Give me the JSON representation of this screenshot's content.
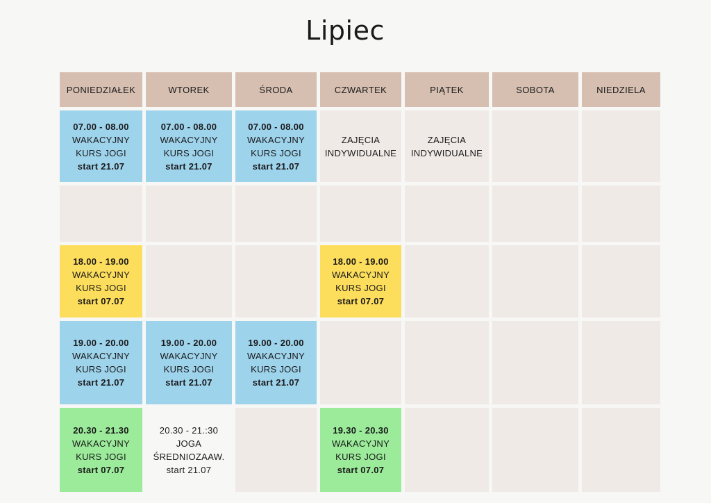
{
  "title": "Lipiec",
  "days": [
    "PONIEDZIAŁEK",
    "WTOREK",
    "ŚRODA",
    "CZWARTEK",
    "PIĄTEK",
    "SOBOTA",
    "NIEDZIELA"
  ],
  "rows": [
    [
      {
        "color": "blue",
        "time": "07.00 - 08.00",
        "line1": "WAKACYJNY",
        "line2": "KURS JOGI",
        "start": "start 21.07"
      },
      {
        "color": "blue",
        "time": "07.00 - 08.00",
        "line1": "WAKACYJNY",
        "line2": "KURS JOGI",
        "start": "start 21.07"
      },
      {
        "color": "blue",
        "time": "07.00 - 08.00",
        "line1": "WAKACYJNY",
        "line2": "KURS JOGI",
        "start": "start 21.07"
      },
      {
        "color": "empty",
        "plain": true,
        "line1": "ZAJĘCIA",
        "line2": "INDYWIDUALNE"
      },
      {
        "color": "empty",
        "plain": true,
        "line1": "ZAJĘCIA",
        "line2": "INDYWIDUALNE"
      },
      {
        "color": "empty"
      },
      {
        "color": "empty"
      }
    ],
    [
      {
        "color": "empty"
      },
      {
        "color": "empty"
      },
      {
        "color": "empty"
      },
      {
        "color": "empty"
      },
      {
        "color": "empty"
      },
      {
        "color": "empty"
      },
      {
        "color": "empty"
      }
    ],
    [
      {
        "color": "yellow",
        "time": "18.00 - 19.00",
        "line1": "WAKACYJNY",
        "line2": "KURS JOGI",
        "start": "start 07.07"
      },
      {
        "color": "empty"
      },
      {
        "color": "empty"
      },
      {
        "color": "yellow",
        "time": "18.00 - 19.00",
        "line1": "WAKACYJNY",
        "line2": "KURS JOGI",
        "start": "start 07.07"
      },
      {
        "color": "empty"
      },
      {
        "color": "empty"
      },
      {
        "color": "empty"
      }
    ],
    [
      {
        "color": "blue",
        "time": "19.00 - 20.00",
        "line1": "WAKACYJNY",
        "line2": "KURS JOGI",
        "start": "start 21.07"
      },
      {
        "color": "blue",
        "time": "19.00 - 20.00",
        "line1": "WAKACYJNY",
        "line2": "KURS JOGI",
        "start": "start 21.07"
      },
      {
        "color": "blue",
        "time": "19.00 - 20.00",
        "line1": "WAKACYJNY",
        "line2": "KURS JOGI",
        "start": "start 21.07"
      },
      {
        "color": "empty"
      },
      {
        "color": "empty"
      },
      {
        "color": "empty"
      },
      {
        "color": "empty"
      }
    ],
    [
      {
        "color": "green",
        "time": "20.30 - 21.30",
        "line1": "WAKACYJNY",
        "line2": "KURS JOGI",
        "start": "start 07.07"
      },
      {
        "color": "white",
        "plain": true,
        "time": "20.30 - 21.:30",
        "line1": "JOGA",
        "line2": "ŚREDNIOZAAW.",
        "start": "start 21.07"
      },
      {
        "color": "empty"
      },
      {
        "color": "green",
        "time": "19.30 - 20.30",
        "line1": "WAKACYJNY",
        "line2": "KURS JOGI",
        "start": "start 07.07"
      },
      {
        "color": "empty"
      },
      {
        "color": "empty"
      },
      {
        "color": "empty"
      }
    ]
  ]
}
